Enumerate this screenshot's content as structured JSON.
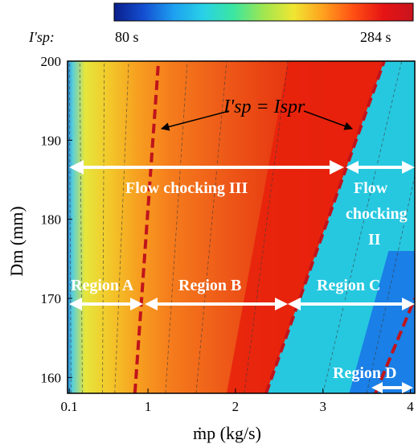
{
  "chart_data": {
    "type": "heatmap",
    "colorbar": {
      "label": "I'sp:",
      "min_label": "80 s",
      "max_label": "284 s",
      "min": 80,
      "max": 284,
      "colors": [
        "#0a1e8c",
        "#1450d2",
        "#1ea0f0",
        "#28d2e6",
        "#3ce6a0",
        "#a0e650",
        "#f0e632",
        "#ffa01e",
        "#ff5014",
        "#e61414",
        "#c8141e"
      ]
    },
    "xlabel": "ṁp (kg/s)",
    "ylabel": "Dm (mm)",
    "xlim": [
      0.08,
      4.05
    ],
    "ylim": [
      158,
      200
    ],
    "x_ticks": [
      {
        "v": 0.1,
        "label": "0.1"
      },
      {
        "v": 1,
        "label": "1"
      },
      {
        "v": 2,
        "label": "2"
      },
      {
        "v": 3,
        "label": "3"
      },
      {
        "v": 4,
        "label": "4"
      }
    ],
    "y_ticks": [
      {
        "v": 160,
        "label": "160"
      },
      {
        "v": 170,
        "label": "170"
      },
      {
        "v": 180,
        "label": "180"
      },
      {
        "v": 190,
        "label": "190"
      },
      {
        "v": 200,
        "label": "200"
      }
    ],
    "boundary_lines": [
      {
        "name": "I'sp = Ispr left",
        "points": [
          [
            0.85,
            158
          ],
          [
            1.12,
            200
          ]
        ]
      },
      {
        "name": "I'sp = Ispr right",
        "points": [
          [
            2.35,
            158
          ],
          [
            3.7,
            200
          ]
        ]
      },
      {
        "name": "I'sp = Ispr lower right",
        "points": [
          [
            3.6,
            158
          ],
          [
            4.05,
            170
          ]
        ]
      }
    ],
    "annotations": {
      "callout": "I'sp = Ispr",
      "flow_chocking_3": "Flow chocking III",
      "flow_chocking_2_line1": "Flow",
      "flow_chocking_2_line2": "chocking",
      "flow_chocking_2_line3": "II",
      "region_a": "Region A",
      "region_b": "Region B",
      "region_c": "Region C",
      "region_d": "Region D"
    }
  }
}
